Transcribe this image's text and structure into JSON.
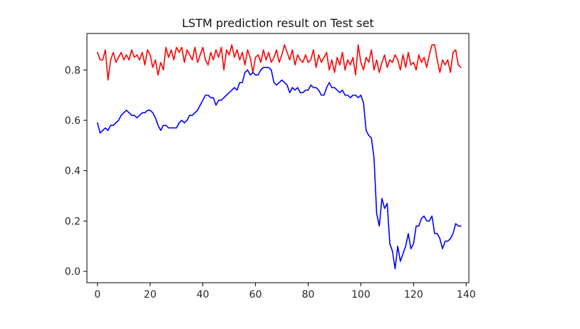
{
  "chart_data": {
    "type": "line",
    "title": "LSTM prediction result on Test set",
    "xlabel": "",
    "ylabel": "",
    "xlim": [
      -4,
      141
    ],
    "ylim": [
      -0.045,
      0.945
    ],
    "x_ticks": [
      0,
      20,
      40,
      60,
      80,
      100,
      120,
      140
    ],
    "y_ticks": [
      0.0,
      0.2,
      0.4,
      0.6,
      0.8
    ],
    "grid": false,
    "legend": "none",
    "series": [
      {
        "color": "#ff0000",
        "x": [
          0,
          1,
          2,
          3,
          4,
          5,
          6,
          7,
          8,
          9,
          10,
          11,
          12,
          13,
          14,
          15,
          16,
          17,
          18,
          19,
          20,
          21,
          22,
          23,
          24,
          25,
          26,
          27,
          28,
          29,
          30,
          31,
          32,
          33,
          34,
          35,
          36,
          37,
          38,
          39,
          40,
          41,
          42,
          43,
          44,
          45,
          46,
          47,
          48,
          49,
          50,
          51,
          52,
          53,
          54,
          55,
          56,
          57,
          58,
          59,
          60,
          61,
          62,
          63,
          64,
          65,
          66,
          67,
          68,
          69,
          70,
          71,
          72,
          73,
          74,
          75,
          76,
          77,
          78,
          79,
          80,
          81,
          82,
          83,
          84,
          85,
          86,
          87,
          88,
          89,
          90,
          91,
          92,
          93,
          94,
          95,
          96,
          97,
          98,
          99,
          100,
          101,
          102,
          103,
          104,
          105,
          106,
          107,
          108,
          109,
          110,
          111,
          112,
          113,
          114,
          115,
          116,
          117,
          118,
          119,
          120,
          121,
          122,
          123,
          124,
          125,
          126,
          127,
          128,
          129,
          130,
          131,
          132,
          133,
          134,
          135,
          136,
          137,
          138
        ],
        "values": [
          0.87,
          0.84,
          0.84,
          0.88,
          0.76,
          0.84,
          0.87,
          0.83,
          0.85,
          0.87,
          0.84,
          0.86,
          0.84,
          0.88,
          0.85,
          0.86,
          0.84,
          0.87,
          0.82,
          0.88,
          0.86,
          0.81,
          0.84,
          0.78,
          0.83,
          0.8,
          0.89,
          0.85,
          0.88,
          0.84,
          0.89,
          0.87,
          0.89,
          0.83,
          0.88,
          0.86,
          0.84,
          0.89,
          0.83,
          0.86,
          0.89,
          0.84,
          0.82,
          0.87,
          0.84,
          0.88,
          0.85,
          0.89,
          0.8,
          0.88,
          0.86,
          0.9,
          0.85,
          0.88,
          0.84,
          0.87,
          0.82,
          0.88,
          0.85,
          0.79,
          0.85,
          0.86,
          0.83,
          0.88,
          0.84,
          0.87,
          0.83,
          0.85,
          0.88,
          0.83,
          0.86,
          0.9,
          0.87,
          0.84,
          0.88,
          0.82,
          0.86,
          0.84,
          0.83,
          0.86,
          0.83,
          0.84,
          0.88,
          0.81,
          0.86,
          0.83,
          0.85,
          0.87,
          0.8,
          0.84,
          0.79,
          0.85,
          0.82,
          0.87,
          0.8,
          0.84,
          0.82,
          0.85,
          0.78,
          0.9,
          0.83,
          0.8,
          0.85,
          0.83,
          0.88,
          0.8,
          0.84,
          0.79,
          0.83,
          0.86,
          0.81,
          0.84,
          0.83,
          0.86,
          0.84,
          0.8,
          0.86,
          0.81,
          0.87,
          0.82,
          0.83,
          0.8,
          0.86,
          0.83,
          0.85,
          0.81,
          0.86,
          0.9,
          0.9,
          0.84,
          0.79,
          0.84,
          0.82,
          0.84,
          0.79,
          0.87,
          0.88,
          0.82,
          0.81
        ],
        "stroke": 1.6
      },
      {
        "color": "#0000ff",
        "x": [
          0,
          1,
          2,
          3,
          4,
          5,
          6,
          7,
          8,
          9,
          10,
          11,
          12,
          13,
          14,
          15,
          16,
          17,
          18,
          19,
          20,
          21,
          22,
          23,
          24,
          25,
          26,
          27,
          28,
          29,
          30,
          31,
          32,
          33,
          34,
          35,
          36,
          37,
          38,
          39,
          40,
          41,
          42,
          43,
          44,
          45,
          46,
          47,
          48,
          49,
          50,
          51,
          52,
          53,
          54,
          55,
          56,
          57,
          58,
          59,
          60,
          61,
          62,
          63,
          64,
          65,
          66,
          67,
          68,
          69,
          70,
          71,
          72,
          73,
          74,
          75,
          76,
          77,
          78,
          79,
          80,
          81,
          82,
          83,
          84,
          85,
          86,
          87,
          88,
          89,
          90,
          91,
          92,
          93,
          94,
          95,
          96,
          97,
          98,
          99,
          100,
          101,
          102,
          103,
          104,
          105,
          106,
          107,
          108,
          109,
          110,
          111,
          112,
          113,
          114,
          115,
          116,
          117,
          118,
          119,
          120,
          121,
          122,
          123,
          124,
          125,
          126,
          127,
          128,
          129,
          130,
          131,
          132,
          133,
          134,
          135,
          136,
          137,
          138
        ],
        "values": [
          0.59,
          0.55,
          0.56,
          0.57,
          0.56,
          0.58,
          0.58,
          0.59,
          0.6,
          0.62,
          0.63,
          0.64,
          0.63,
          0.62,
          0.62,
          0.61,
          0.62,
          0.63,
          0.63,
          0.64,
          0.64,
          0.63,
          0.61,
          0.58,
          0.56,
          0.58,
          0.58,
          0.57,
          0.57,
          0.57,
          0.57,
          0.59,
          0.6,
          0.59,
          0.6,
          0.62,
          0.62,
          0.63,
          0.64,
          0.66,
          0.68,
          0.7,
          0.7,
          0.69,
          0.69,
          0.66,
          0.68,
          0.68,
          0.69,
          0.7,
          0.71,
          0.72,
          0.73,
          0.72,
          0.75,
          0.75,
          0.79,
          0.8,
          0.78,
          0.79,
          0.78,
          0.78,
          0.8,
          0.81,
          0.81,
          0.81,
          0.8,
          0.75,
          0.74,
          0.75,
          0.76,
          0.75,
          0.74,
          0.71,
          0.73,
          0.72,
          0.73,
          0.71,
          0.71,
          0.72,
          0.72,
          0.74,
          0.73,
          0.73,
          0.72,
          0.7,
          0.7,
          0.73,
          0.75,
          0.73,
          0.73,
          0.72,
          0.71,
          0.72,
          0.7,
          0.7,
          0.69,
          0.7,
          0.7,
          0.69,
          0.7,
          0.67,
          0.56,
          0.54,
          0.53,
          0.45,
          0.23,
          0.18,
          0.29,
          0.25,
          0.27,
          0.11,
          0.08,
          0.01,
          0.1,
          0.04,
          0.07,
          0.1,
          0.15,
          0.09,
          0.11,
          0.18,
          0.18,
          0.21,
          0.22,
          0.2,
          0.2,
          0.22,
          0.15,
          0.15,
          0.13,
          0.09,
          0.12,
          0.12,
          0.13,
          0.15,
          0.19,
          0.18,
          0.18
        ],
        "stroke": 1.6
      }
    ]
  }
}
